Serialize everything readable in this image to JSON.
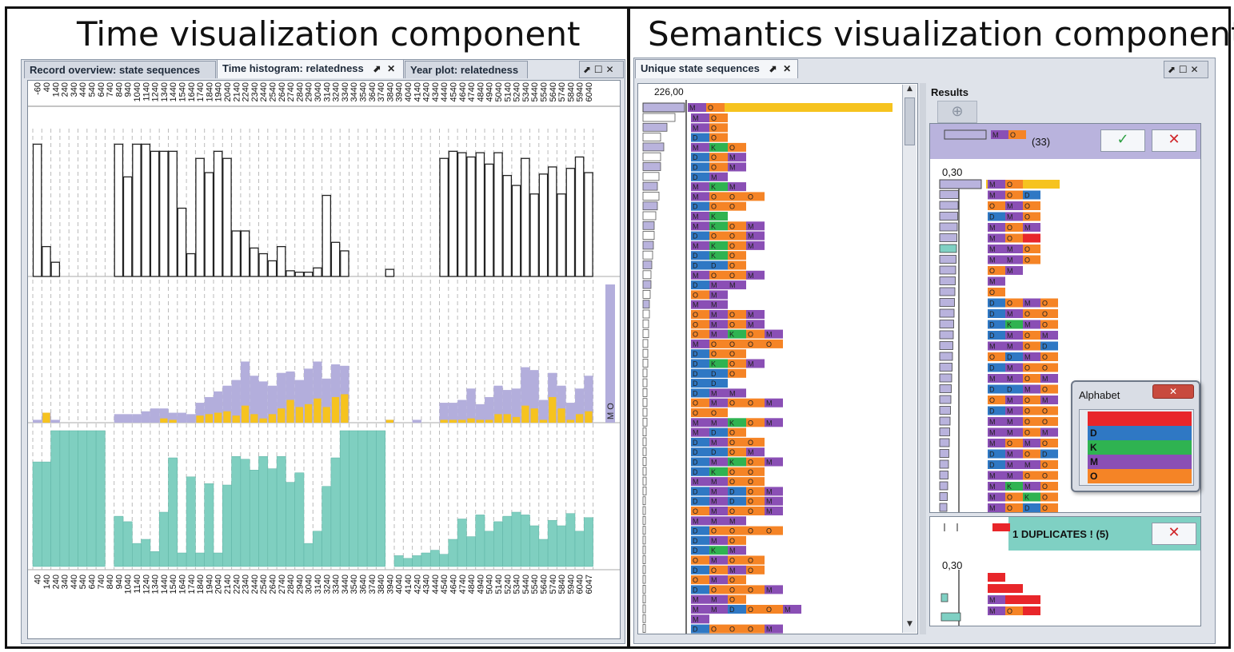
{
  "left": {
    "title": "Time visualization component",
    "tabs": [
      {
        "label": "Record overview: state sequences"
      },
      {
        "label": "Time histogram: relatedness"
      },
      {
        "label": "Year plot: relatedness"
      }
    ],
    "top_ticks": [
      "-60",
      "40",
      "140",
      "240",
      "340",
      "440",
      "540",
      "640",
      "740",
      "840",
      "940",
      "1040",
      "1140",
      "1240",
      "1340",
      "1440",
      "1540",
      "1640",
      "1740",
      "1840",
      "1940",
      "2040",
      "2140",
      "2240",
      "2340",
      "2440",
      "2540",
      "2640",
      "2740",
      "2840",
      "2940",
      "3040",
      "3140",
      "3240",
      "3340",
      "3440",
      "3540",
      "3640",
      "3740",
      "3840",
      "3940",
      "4040",
      "4140",
      "4240",
      "4340",
      "4440",
      "4540",
      "4640",
      "4740",
      "4840",
      "4940",
      "5040",
      "5140",
      "5240",
      "5340",
      "5440",
      "5540",
      "5640",
      "5740",
      "5840",
      "5940",
      "6040"
    ],
    "bottom_ticks": [
      "40",
      "140",
      "240",
      "340",
      "440",
      "540",
      "640",
      "740",
      "840",
      "940",
      "1040",
      "1140",
      "1240",
      "1340",
      "1440",
      "1540",
      "1640",
      "1740",
      "1840",
      "1940",
      "2040",
      "2140",
      "2240",
      "2340",
      "2440",
      "2540",
      "2640",
      "2740",
      "2840",
      "2940",
      "3040",
      "3140",
      "3240",
      "3340",
      "3440",
      "3540",
      "3640",
      "3740",
      "3840",
      "3940",
      "4040",
      "4140",
      "4240",
      "4340",
      "4440",
      "4540",
      "4640",
      "4740",
      "4840",
      "4940",
      "5040",
      "5140",
      "5240",
      "5340",
      "5440",
      "5540",
      "5640",
      "5740",
      "5840",
      "5940",
      "6040",
      "6047"
    ],
    "legend_mid": "M O",
    "colors": {
      "outline": "#222222",
      "lavender": "#b3aedc",
      "yellow": "#f6c31f",
      "teal": "#7fcfc0"
    }
  },
  "right": {
    "title": "Semantics visualization component",
    "tab": {
      "label": "Unique state sequences"
    },
    "max_label": "226,00",
    "results": {
      "label": "Results",
      "group1_count": "(33)",
      "axis_label": "0,30",
      "duplicates_label": "1 DUPLICATES ! (5)",
      "axis_label2": "0,30"
    },
    "alphabet": {
      "title": "Alphabet",
      "items": [
        {
          "letter": "",
          "color": "#e8262a"
        },
        {
          "letter": "D",
          "color": "#2f78c4"
        },
        {
          "letter": "K",
          "color": "#2fb351"
        },
        {
          "letter": "M",
          "color": "#8a4fb5"
        },
        {
          "letter": "O",
          "color": "#f58426"
        }
      ]
    },
    "header_seq": [
      "M",
      "O"
    ],
    "sequences": [
      "MO",
      "MO",
      "DO",
      "MKO",
      "DOM",
      "DOM",
      "DM",
      "MKM",
      "MOOO",
      "DOO",
      "MK",
      "MKOM",
      "DOOM",
      "MKOM",
      "DKO",
      "DDO",
      "MOOM",
      "DMM",
      "OM",
      "MM",
      "OMOM",
      "OMOM",
      "OMKOM",
      "MOOOO",
      "DOO",
      "DKOM",
      "DDO",
      "DD",
      "DMM",
      "OMOOM",
      "OO",
      "MMKOM",
      "MDO",
      "DMOO",
      "DDOM",
      "DMKOM",
      "DKOO",
      "MMOO",
      "DMDOM",
      "DMDOM",
      "OMOOM",
      "MMM",
      "DOOOO",
      "DMO",
      "DKM",
      "OMOO",
      "DOMO",
      "OMO",
      "DOOOM",
      "MMO",
      "MMDOOM",
      "M",
      "DOOOM"
    ],
    "result_seqs": [
      "MO",
      "MOD",
      "OMO",
      "DMO",
      "MOM",
      "MO*",
      "MMO",
      "MMO",
      "OM",
      "M",
      "O",
      "DOMO",
      "DMOO",
      "DKMO",
      "DMOM",
      "MMOD",
      "ODMO",
      "DMOO",
      "MMOM",
      "DDMO",
      "OMOM",
      "DMOO",
      "MMOO",
      "MMOM",
      "MOMO",
      "DMOD",
      "DMMO",
      "MMOO",
      "MKMO",
      "MOKO",
      "MODO"
    ],
    "dup_seqs": [
      "*",
      "**",
      "M**",
      "MO*"
    ],
    "colors": {
      "M": "#8a4fb5",
      "O": "#f58426",
      "D": "#2f78c4",
      "K": "#2fb351",
      "*": "#e8262a",
      "highlight": "#f6c31f",
      "card": "#b9b3dd",
      "dup": "#7fd0c3"
    }
  }
}
